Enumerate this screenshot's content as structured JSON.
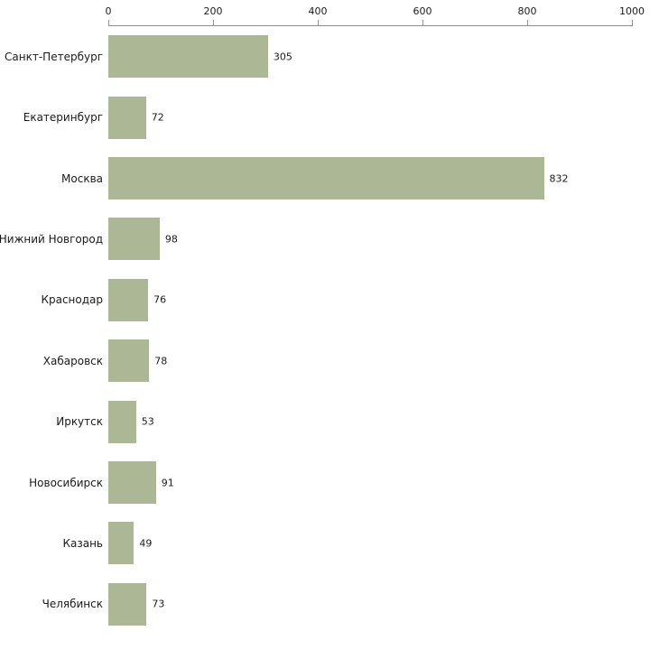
{
  "chart_data": {
    "type": "bar",
    "orientation": "horizontal",
    "title": "",
    "xlabel": "",
    "ylabel": "",
    "categories": [
      "Санкт-Петербург",
      "Екатеринбург",
      "Москва",
      "Нижний Новгород",
      "Краснодар",
      "Хабаровск",
      "Иркутск",
      "Новосибирск",
      "Казань",
      "Челябинск"
    ],
    "values": [
      305,
      72,
      832,
      98,
      76,
      78,
      53,
      91,
      49,
      73
    ],
    "xlim": [
      0,
      1000
    ],
    "x_ticks": [
      0,
      200,
      400,
      600,
      800,
      1000
    ],
    "bar_color": "#abb795",
    "axis_color": "#8f8f8f",
    "grid": false,
    "legend": "none",
    "value_labels": true
  }
}
